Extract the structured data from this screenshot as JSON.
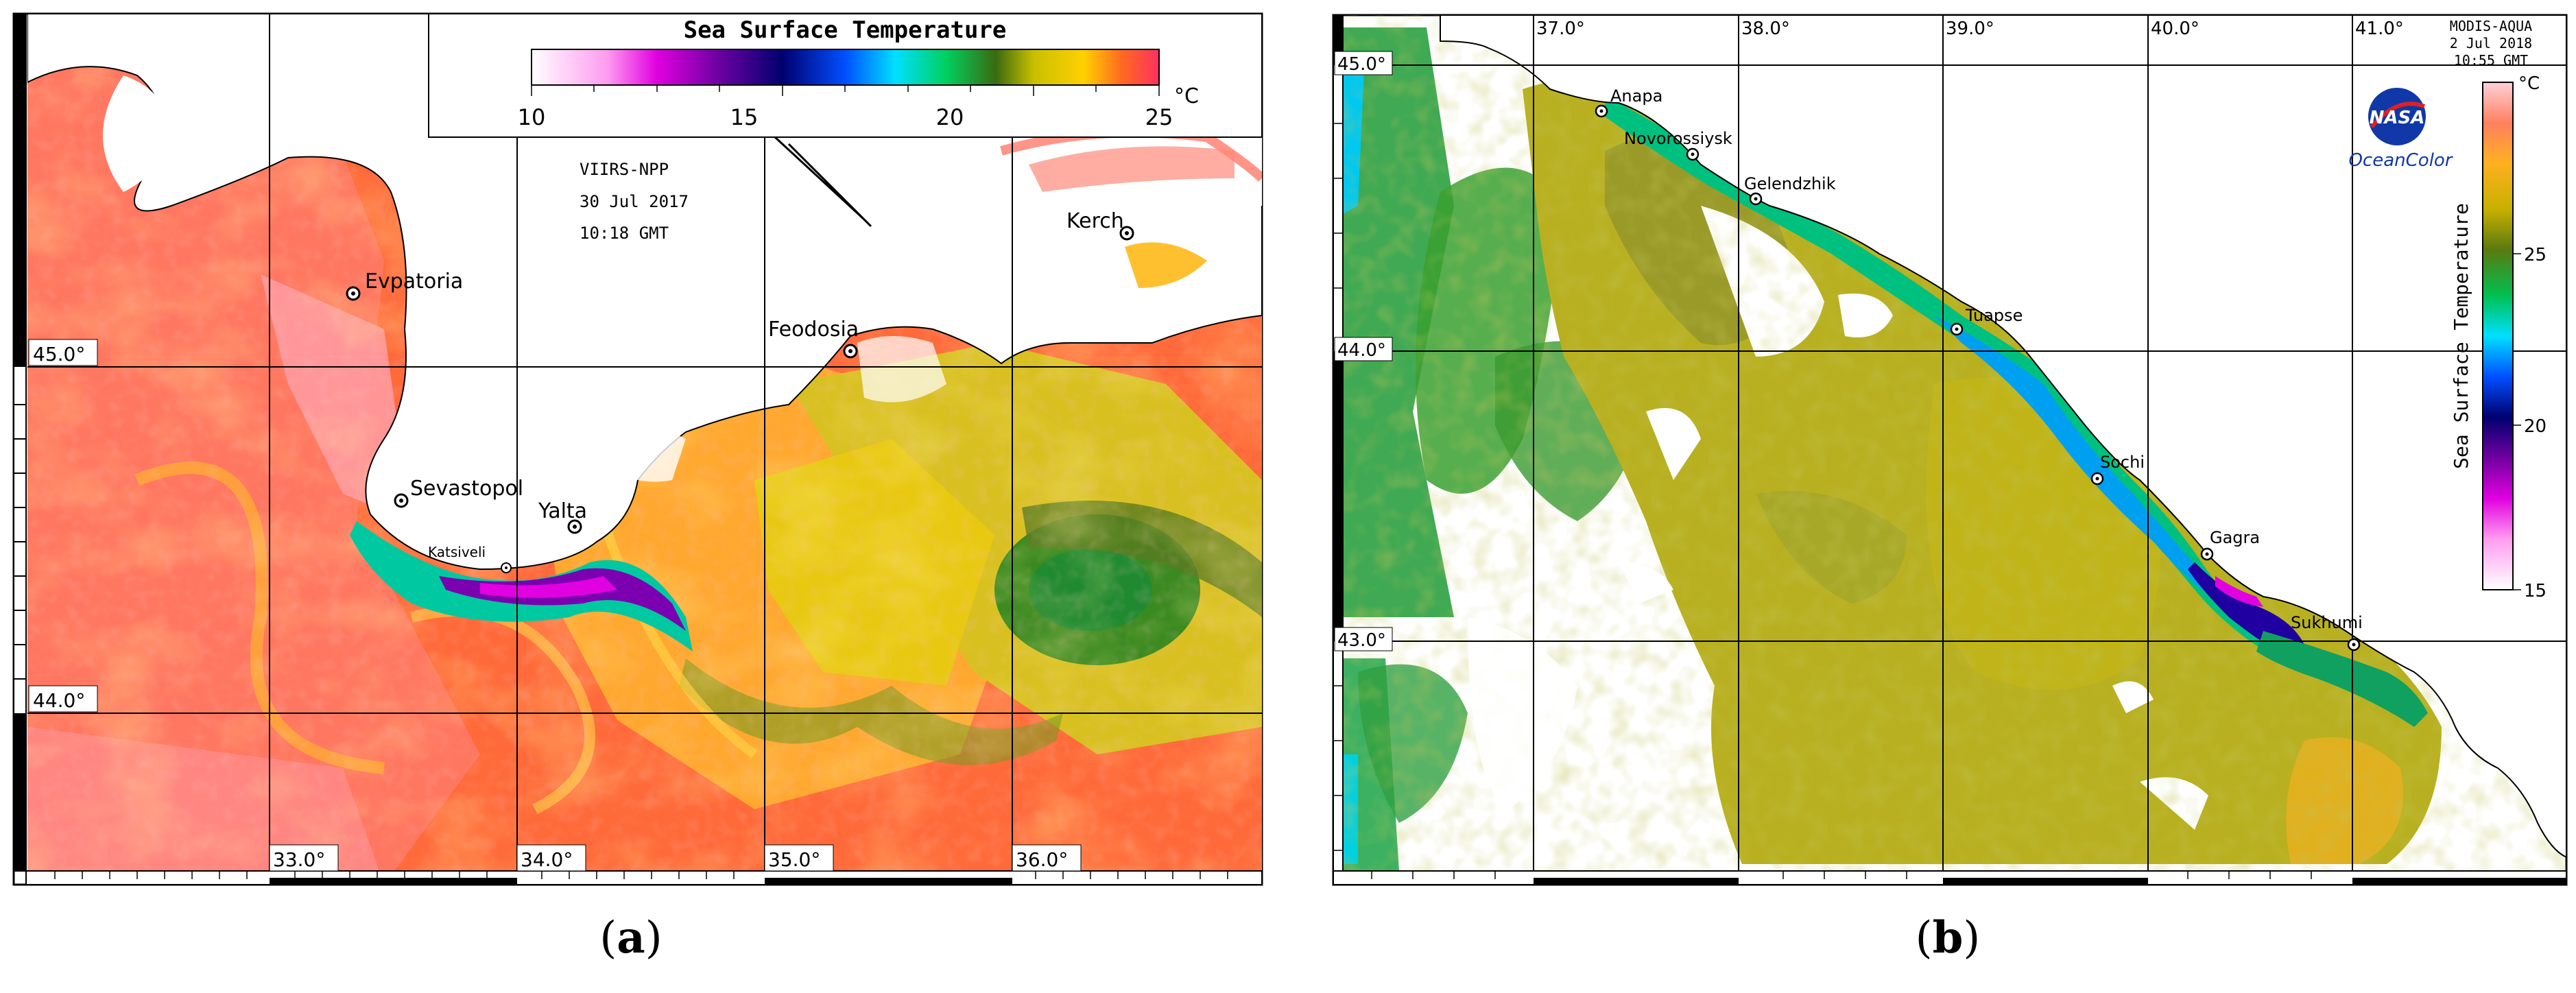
{
  "panel_a": {
    "colorbar_title": "Sea Surface Temperature",
    "colorbar_ticks": [
      "10",
      "15",
      "20",
      "25"
    ],
    "colorbar_unit": "°C",
    "sensor": "VIIRS-NPP",
    "date": "30 Jul 2017",
    "time": "10:18 GMT",
    "lat_labels": [
      "45.0°",
      "44.0°"
    ],
    "lon_labels": [
      "33.0°",
      "34.0°",
      "35.0°",
      "36.0°"
    ],
    "places": [
      "Evpatoria",
      "Sevastopol",
      "Katsiveli",
      "Yalta",
      "Feodosia",
      "Kerch"
    ],
    "caption_letter": "a"
  },
  "panel_b": {
    "sensor": "MODIS-AQUA",
    "date": "2 Jul 2018",
    "time": "10:55 GMT",
    "logo_text": "NASA",
    "brand": "OceanColor",
    "colorbar_title": "Sea Surface Temperature",
    "colorbar_ticks": [
      "25",
      "20",
      "15"
    ],
    "colorbar_unit": "°C",
    "lat_labels": [
      "45.0°",
      "44.0°",
      "43.0°"
    ],
    "lon_labels": [
      "37.0°",
      "38.0°",
      "39.0°",
      "40.0°",
      "41.0°"
    ],
    "places": [
      "Anapa",
      "Novorossiysk",
      "Gelendzhik",
      "Tuapse",
      "Sochi",
      "Gagra",
      "Sukhumi"
    ],
    "caption_letter": "b"
  }
}
